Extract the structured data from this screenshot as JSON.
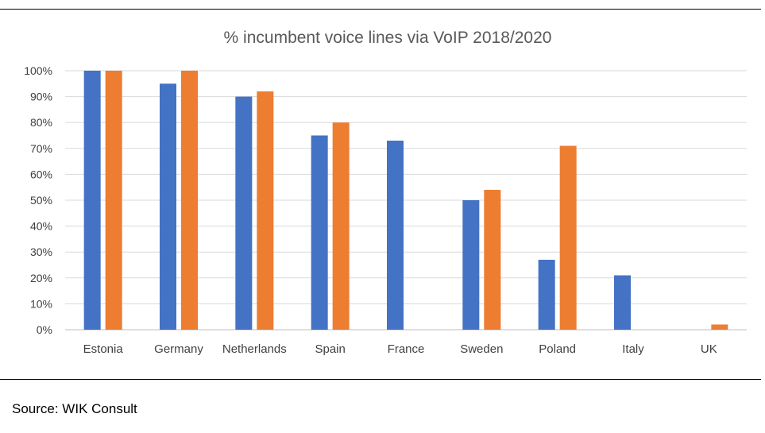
{
  "source_note": "Source: WIK Consult",
  "chart_data": {
    "type": "bar",
    "title": "% incumbent voice lines via VoIP 2018/2020",
    "categories": [
      "Estonia",
      "Germany",
      "Netherlands",
      "Spain",
      "France",
      "Sweden",
      "Poland",
      "Italy",
      "UK"
    ],
    "series": [
      {
        "color": "#4472C4",
        "values": [
          100,
          95,
          90,
          75,
          73,
          50,
          27,
          21,
          0
        ]
      },
      {
        "color": "#ED7D31",
        "values": [
          100,
          100,
          92,
          80,
          0,
          54,
          71,
          0,
          2
        ]
      }
    ],
    "ylim": [
      0,
      100
    ],
    "yticks": [
      "0%",
      "10%",
      "20%",
      "30%",
      "40%",
      "50%",
      "60%",
      "70%",
      "80%",
      "90%",
      "100%"
    ],
    "grid": true,
    "legend": "none"
  }
}
